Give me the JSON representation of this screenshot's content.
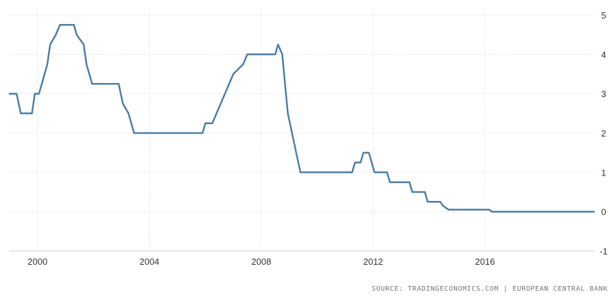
{
  "chart_data": {
    "type": "line",
    "title": "",
    "xlabel": "",
    "ylabel": "",
    "xlim": [
      1999.0,
      2019.9
    ],
    "ylim": [
      -1,
      5
    ],
    "grid": true,
    "x_ticks": [
      {
        "value": 2000,
        "label": "2000"
      },
      {
        "value": 2004,
        "label": "2004"
      },
      {
        "value": 2008,
        "label": "2008"
      },
      {
        "value": 2012,
        "label": "2012"
      },
      {
        "value": 2016,
        "label": "2016"
      }
    ],
    "y_ticks": [
      {
        "value": 5,
        "label": "5"
      },
      {
        "value": 4,
        "label": "4"
      },
      {
        "value": 3,
        "label": "3"
      },
      {
        "value": 2,
        "label": "2"
      },
      {
        "value": 1,
        "label": "1"
      },
      {
        "value": 0,
        "label": "0"
      },
      {
        "value": -1,
        "label": "-1"
      }
    ],
    "series": [
      {
        "color": "#4a7ea8",
        "points": [
          [
            1999.0,
            3.0
          ],
          [
            1999.25,
            3.0
          ],
          [
            1999.4,
            2.5
          ],
          [
            1999.8,
            2.5
          ],
          [
            1999.9,
            3.0
          ],
          [
            2000.05,
            3.0
          ],
          [
            2000.15,
            3.25
          ],
          [
            2000.25,
            3.5
          ],
          [
            2000.35,
            3.75
          ],
          [
            2000.45,
            4.25
          ],
          [
            2000.65,
            4.5
          ],
          [
            2000.8,
            4.75
          ],
          [
            2001.3,
            4.75
          ],
          [
            2001.4,
            4.5
          ],
          [
            2001.65,
            4.25
          ],
          [
            2001.75,
            3.75
          ],
          [
            2001.85,
            3.5
          ],
          [
            2001.95,
            3.25
          ],
          [
            2002.9,
            3.25
          ],
          [
            2003.05,
            2.75
          ],
          [
            2003.25,
            2.5
          ],
          [
            2003.45,
            2.0
          ],
          [
            2005.9,
            2.0
          ],
          [
            2006.0,
            2.25
          ],
          [
            2006.25,
            2.25
          ],
          [
            2006.4,
            2.5
          ],
          [
            2006.55,
            2.75
          ],
          [
            2006.7,
            3.0
          ],
          [
            2006.85,
            3.25
          ],
          [
            2007.0,
            3.5
          ],
          [
            2007.35,
            3.75
          ],
          [
            2007.5,
            4.0
          ],
          [
            2008.5,
            4.0
          ],
          [
            2008.6,
            4.25
          ],
          [
            2008.75,
            4.0
          ],
          [
            2008.85,
            3.25
          ],
          [
            2008.95,
            2.5
          ],
          [
            2009.1,
            2.0
          ],
          [
            2009.25,
            1.5
          ],
          [
            2009.4,
            1.0
          ],
          [
            2011.25,
            1.0
          ],
          [
            2011.35,
            1.25
          ],
          [
            2011.55,
            1.25
          ],
          [
            2011.65,
            1.5
          ],
          [
            2011.85,
            1.5
          ],
          [
            2011.95,
            1.25
          ],
          [
            2012.05,
            1.0
          ],
          [
            2012.5,
            1.0
          ],
          [
            2012.6,
            0.75
          ],
          [
            2013.3,
            0.75
          ],
          [
            2013.4,
            0.5
          ],
          [
            2013.85,
            0.5
          ],
          [
            2013.95,
            0.25
          ],
          [
            2014.4,
            0.25
          ],
          [
            2014.5,
            0.15
          ],
          [
            2014.7,
            0.05
          ],
          [
            2016.15,
            0.05
          ],
          [
            2016.25,
            0.0
          ],
          [
            2019.9,
            0.0
          ]
        ]
      }
    ]
  },
  "source": {
    "text": "SOURCE: TRADINGECONOMICS.COM | EUROPEAN CENTRAL BANK"
  }
}
